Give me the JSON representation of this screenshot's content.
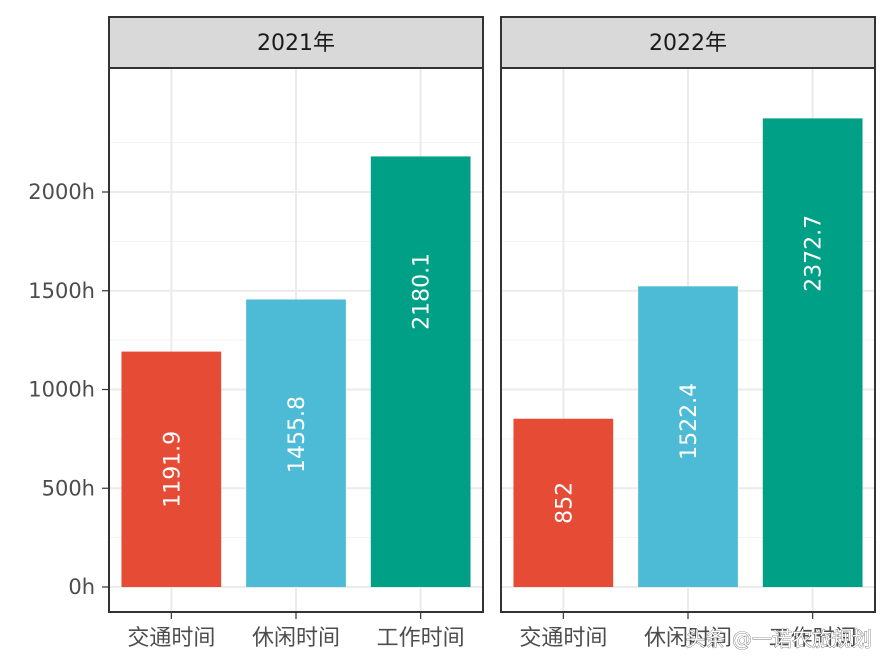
{
  "chart_data": {
    "type": "bar",
    "facets": [
      {
        "label": "2021年",
        "categories": [
          "交通时间",
          "休闲时间",
          "工作时间"
        ],
        "values": [
          1191.9,
          1455.8,
          2180.1
        ],
        "value_labels": [
          "1191.9",
          "1455.8",
          "2180.1"
        ]
      },
      {
        "label": "2022年",
        "categories": [
          "交通时间",
          "休闲时间",
          "工作时间"
        ],
        "values": [
          852,
          1522.4,
          2372.7
        ],
        "value_labels": [
          "852",
          "1522.4",
          "2372.7"
        ]
      }
    ],
    "category_colors": [
      "#E64B35",
      "#4DBBD5",
      "#00A087"
    ],
    "y_ticks": [
      0,
      500,
      1000,
      1500,
      2000
    ],
    "y_tick_labels": [
      "0h",
      "500h",
      "1000h",
      "1500h",
      "2000h"
    ],
    "ylim": [
      0,
      2600
    ],
    "grid": true,
    "legend": "none"
  },
  "watermark": "头条 @一诺农旅规划"
}
